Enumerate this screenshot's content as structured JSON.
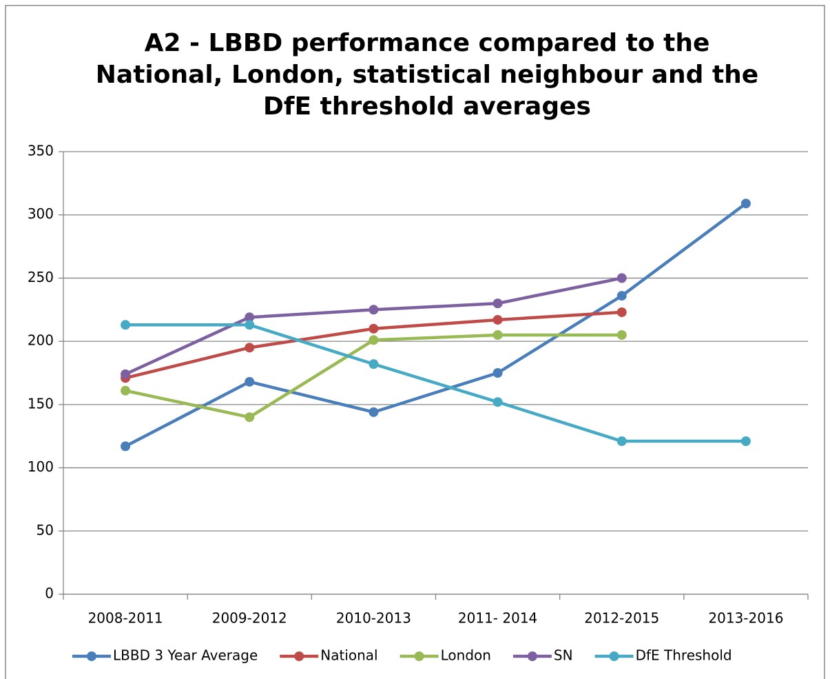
{
  "chart_data": {
    "type": "line",
    "title": "A2 - LBBD performance compared to the National, London, statistical neighbour and the DfE threshold averages",
    "categories": [
      "2008-2011",
      "2009-2012",
      "2010-2013",
      "2011- 2014",
      "2012-2015",
      "2013-2016"
    ],
    "series": [
      {
        "name": "LBBD 3 Year Average",
        "color": "#4a7ebb",
        "values": [
          117,
          168,
          144,
          175,
          236,
          309
        ]
      },
      {
        "name": "National",
        "color": "#be4b48",
        "values": [
          171,
          195,
          210,
          217,
          223,
          null
        ]
      },
      {
        "name": "London",
        "color": "#98b954",
        "values": [
          161,
          140,
          201,
          205,
          205,
          null
        ]
      },
      {
        "name": "SN",
        "color": "#7d60a0",
        "values": [
          174,
          219,
          225,
          230,
          250,
          null
        ]
      },
      {
        "name": "DfE Threshold",
        "color": "#46aac5",
        "values": [
          213,
          213,
          182,
          152,
          121,
          121
        ]
      }
    ],
    "ylim": [
      0,
      350
    ],
    "yticks": [
      0,
      50,
      100,
      150,
      200,
      250,
      300,
      350
    ],
    "grid": true,
    "legend": "bottom"
  }
}
